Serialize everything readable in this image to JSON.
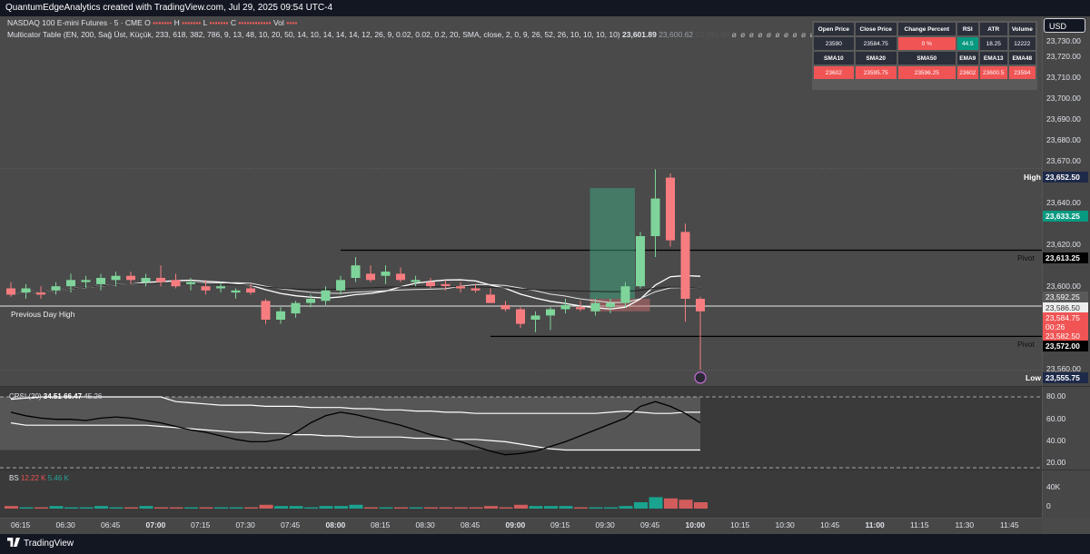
{
  "header": {
    "title": "QuantumEdgeAnalytics created with TradingView.com, Jul 29, 2025 09:54 UTC-4"
  },
  "legend": {
    "symbol": "NASDAQ 100 E-mini Futures · 5 · CME",
    "o_label": "O",
    "h_label": "H",
    "l_label": "L",
    "c_label": "C",
    "vol_label": "Vol",
    "indicator": "Multicator Table (EN, 200, Sağ Üst, Küçük, 233, 618, 382, 786, 9, 13, 48, 10, 20, 50, 14, 10, 14, 14, 14, 12, 26, 9, 0.02, 0.02, 0.2, 20, SMA, close, 2, 0, 9, 26, 52, 26, 10, 10, 10, 10)",
    "ind_val1": "23,601.89",
    "ind_val2": "23,600.62",
    "ind_val3": "23,591.98",
    "dots": "ø ø ø ø ø ø ø ø ø ø ø ø ø ø ø ø ø ø ø ø ø ø ø ø ø ø ø ø ø ø ø ø ø"
  },
  "table": {
    "headers1": [
      "Open Price",
      "Close Price",
      "Change Percent",
      "RSI",
      "ATR",
      "Volume"
    ],
    "values1": [
      "23590",
      "23584.75",
      "0 %",
      "44.5",
      "18.25",
      "12222"
    ],
    "headers2": [
      "SMA10",
      "SMA20",
      "SMA50",
      "EMA9",
      "EMA13",
      "EMA48"
    ],
    "values2": [
      "23602",
      "23595.75",
      "23596.25",
      "23602",
      "23600.5",
      "23594"
    ]
  },
  "currency": "USD",
  "price_ticks": [
    "23,730.00",
    "23,720.00",
    "23,710.00",
    "23,700.00",
    "23,690.00",
    "23,680.00",
    "23,670.00",
    "23,660.00",
    "23,640.00",
    "23,620.00",
    "23,600.00",
    "23,560.00"
  ],
  "price_tags": {
    "high_label": "High",
    "high": "23,652.50",
    "green": "23,633.25",
    "pivot_label": "Pivot",
    "pivot1": "23,613.25",
    "sma": "23,592.25",
    "pdh": "23,586.50",
    "last": "23,584.75",
    "countdown": "00:26",
    "red": "23,582.50",
    "pivot2": "23,572.00",
    "low_label": "Low",
    "low": "23,555.75"
  },
  "left_labels": {
    "pdh": "Previous Day High"
  },
  "oscillator": {
    "label": "CRSI (20)",
    "v1": "34.51",
    "v2": "66.47",
    "v3": "45.26",
    "ticks": [
      "80.00",
      "60.00",
      "40.00",
      "20.00"
    ]
  },
  "volume_pane": {
    "label": "BS",
    "v1": "12.22 K",
    "v2": "5.46 K",
    "ticks": [
      "40K",
      "0"
    ]
  },
  "time_ticks": [
    {
      "t": "06:15",
      "b": false
    },
    {
      "t": "06:30",
      "b": false
    },
    {
      "t": "06:45",
      "b": false
    },
    {
      "t": "07:00",
      "b": true
    },
    {
      "t": "07:15",
      "b": false
    },
    {
      "t": "07:30",
      "b": false
    },
    {
      "t": "07:45",
      "b": false
    },
    {
      "t": "08:00",
      "b": true
    },
    {
      "t": "08:15",
      "b": false
    },
    {
      "t": "08:30",
      "b": false
    },
    {
      "t": "08:45",
      "b": false
    },
    {
      "t": "09:00",
      "b": true
    },
    {
      "t": "09:15",
      "b": false
    },
    {
      "t": "09:30",
      "b": false
    },
    {
      "t": "09:45",
      "b": false
    },
    {
      "t": "10:00",
      "b": true
    },
    {
      "t": "10:15",
      "b": false
    },
    {
      "t": "10:30",
      "b": false
    },
    {
      "t": "10:45",
      "b": false
    },
    {
      "t": "11:00",
      "b": true
    },
    {
      "t": "11:15",
      "b": false
    },
    {
      "t": "11:30",
      "b": false
    },
    {
      "t": "11:45",
      "b": false
    }
  ],
  "footer": {
    "brand": "TradingView"
  },
  "colors": {
    "up": "#7ed49a",
    "down": "#f77c80",
    "bg": "#4a4a4a",
    "accent_red": "#f05454",
    "accent_green": "#089981"
  },
  "candles": [
    {
      "o": 23595,
      "h": 23598,
      "l": 23591,
      "c": 23592
    },
    {
      "o": 23593,
      "h": 23597,
      "l": 23590,
      "c": 23595
    },
    {
      "o": 23593,
      "h": 23596,
      "l": 23590,
      "c": 23592
    },
    {
      "o": 23594,
      "h": 23598,
      "l": 23592,
      "c": 23596
    },
    {
      "o": 23596,
      "h": 23602,
      "l": 23593,
      "c": 23599
    },
    {
      "o": 23598,
      "h": 23601,
      "l": 23595,
      "c": 23599
    },
    {
      "o": 23597,
      "h": 23602,
      "l": 23594,
      "c": 23600
    },
    {
      "o": 23599,
      "h": 23603,
      "l": 23596,
      "c": 23601
    },
    {
      "o": 23601,
      "h": 23603,
      "l": 23597,
      "c": 23599
    },
    {
      "o": 23598,
      "h": 23602,
      "l": 23596,
      "c": 23600
    },
    {
      "o": 23600,
      "h": 23606,
      "l": 23596,
      "c": 23598
    },
    {
      "o": 23599,
      "h": 23602,
      "l": 23595,
      "c": 23596
    },
    {
      "o": 23597,
      "h": 23600,
      "l": 23594,
      "c": 23598
    },
    {
      "o": 23596,
      "h": 23599,
      "l": 23592,
      "c": 23594
    },
    {
      "o": 23595,
      "h": 23598,
      "l": 23593,
      "c": 23596
    },
    {
      "o": 23593,
      "h": 23595,
      "l": 23590,
      "c": 23594
    },
    {
      "o": 23595,
      "h": 23597,
      "l": 23592,
      "c": 23593
    },
    {
      "o": 23589,
      "h": 23590,
      "l": 23578,
      "c": 23580
    },
    {
      "o": 23580,
      "h": 23586,
      "l": 23578,
      "c": 23584
    },
    {
      "o": 23583,
      "h": 23589,
      "l": 23581,
      "c": 23588
    },
    {
      "o": 23588,
      "h": 23592,
      "l": 23586,
      "c": 23590
    },
    {
      "o": 23589,
      "h": 23596,
      "l": 23587,
      "c": 23594
    },
    {
      "o": 23594,
      "h": 23601,
      "l": 23592,
      "c": 23599
    },
    {
      "o": 23600,
      "h": 23610,
      "l": 23598,
      "c": 23606
    },
    {
      "o": 23602,
      "h": 23606,
      "l": 23598,
      "c": 23599
    },
    {
      "o": 23601,
      "h": 23606,
      "l": 23597,
      "c": 23603
    },
    {
      "o": 23602,
      "h": 23605,
      "l": 23598,
      "c": 23599
    },
    {
      "o": 23598,
      "h": 23601,
      "l": 23596,
      "c": 23599
    },
    {
      "o": 23598,
      "h": 23600,
      "l": 23595,
      "c": 23596
    },
    {
      "o": 23597,
      "h": 23599,
      "l": 23594,
      "c": 23596
    },
    {
      "o": 23596,
      "h": 23598,
      "l": 23593,
      "c": 23595
    },
    {
      "o": 23595,
      "h": 23597,
      "l": 23593,
      "c": 23594
    },
    {
      "o": 23592,
      "h": 23595,
      "l": 23588,
      "c": 23588
    },
    {
      "o": 23587,
      "h": 23589,
      "l": 23584,
      "c": 23585
    },
    {
      "o": 23585,
      "h": 23586,
      "l": 23576,
      "c": 23578
    },
    {
      "o": 23580,
      "h": 23584,
      "l": 23574,
      "c": 23582
    },
    {
      "o": 23582,
      "h": 23586,
      "l": 23575,
      "c": 23585
    },
    {
      "o": 23585,
      "h": 23590,
      "l": 23583,
      "c": 23587
    },
    {
      "o": 23586,
      "h": 23589,
      "l": 23584,
      "c": 23585
    },
    {
      "o": 23584,
      "h": 23590,
      "l": 23582,
      "c": 23588
    },
    {
      "o": 23586,
      "h": 23590,
      "l": 23583,
      "c": 23588
    },
    {
      "o": 23588,
      "h": 23598,
      "l": 23586,
      "c": 23596
    },
    {
      "o": 23596,
      "h": 23622,
      "l": 23595,
      "c": 23620
    },
    {
      "o": 23620,
      "h": 23652,
      "l": 23610,
      "c": 23638
    },
    {
      "o": 23648,
      "h": 23650,
      "l": 23615,
      "c": 23618
    },
    {
      "o": 23622,
      "h": 23626,
      "l": 23579,
      "c": 23590
    },
    {
      "o": 23590,
      "h": 23591,
      "l": 23556,
      "c": 23584
    }
  ],
  "volume": [
    2,
    1,
    1,
    2,
    1,
    1,
    2,
    1,
    1,
    2,
    1,
    1,
    1,
    1,
    1,
    1,
    1,
    3,
    2,
    2,
    1,
    2,
    2,
    3,
    1,
    1,
    1,
    1,
    1,
    1,
    1,
    1,
    2,
    1,
    3,
    2,
    2,
    2,
    1,
    1,
    1,
    2,
    5,
    9,
    8,
    7,
    5
  ]
}
